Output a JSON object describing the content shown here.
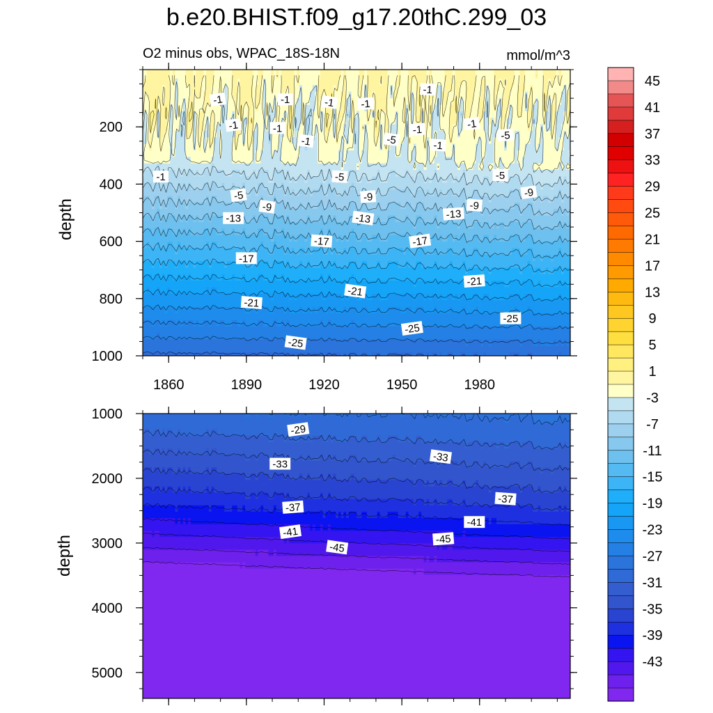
{
  "title": "b.e20.BHIST.f09_g17.20thC.299_03",
  "chart_data": {
    "type": "contour",
    "variable_label": "O2 minus obs, WPAC_18S-18N",
    "units": "mmol/m^3",
    "x_range": [
      1850,
      2015
    ],
    "x_ticks": [
      1860,
      1890,
      1920,
      1950,
      1980
    ],
    "x_tick_labels": [
      "1860",
      "1890",
      "1920",
      "1950",
      "1980"
    ],
    "panels": [
      {
        "name": "upper",
        "ylabel": "depth",
        "ylim": [
          0,
          1000
        ],
        "y_inverted": true,
        "y_ticks": [
          200,
          400,
          600,
          800,
          1000
        ],
        "y_tick_labels": [
          "200",
          "400",
          "600",
          "800",
          "1000"
        ],
        "contour_labels": [
          {
            "text": "-1",
            "x": 1879,
            "y": 105
          },
          {
            "text": "-1",
            "x": 1905,
            "y": 105
          },
          {
            "text": "-1",
            "x": 1922,
            "y": 115
          },
          {
            "text": "-1",
            "x": 1936,
            "y": 120
          },
          {
            "text": "-1",
            "x": 1960,
            "y": 70
          },
          {
            "text": "-1",
            "x": 1885,
            "y": 195
          },
          {
            "text": "-1",
            "x": 1902,
            "y": 205
          },
          {
            "text": "-1",
            "x": 1913,
            "y": 250
          },
          {
            "text": "-1",
            "x": 1956,
            "y": 210
          },
          {
            "text": "-1",
            "x": 1964,
            "y": 265
          },
          {
            "text": "-1",
            "x": 1977,
            "y": 190
          },
          {
            "text": "-1",
            "x": 1857,
            "y": 375
          },
          {
            "text": "-5",
            "x": 1946,
            "y": 245
          },
          {
            "text": "-5",
            "x": 1990,
            "y": 230
          },
          {
            "text": "-5",
            "x": 1926,
            "y": 375
          },
          {
            "text": "-5",
            "x": 1887,
            "y": 440
          },
          {
            "text": "-5",
            "x": 1988,
            "y": 370
          },
          {
            "text": "-9",
            "x": 1898,
            "y": 480
          },
          {
            "text": "-9",
            "x": 1937,
            "y": 445
          },
          {
            "text": "-9",
            "x": 1978,
            "y": 475
          },
          {
            "text": "-9",
            "x": 1999,
            "y": 430
          },
          {
            "text": "-13",
            "x": 1885,
            "y": 520
          },
          {
            "text": "-13",
            "x": 1935,
            "y": 520
          },
          {
            "text": "-13",
            "x": 1970,
            "y": 505
          },
          {
            "text": "-17",
            "x": 1919,
            "y": 600
          },
          {
            "text": "-17",
            "x": 1957,
            "y": 600
          },
          {
            "text": "-17",
            "x": 1890,
            "y": 660
          },
          {
            "text": "-21",
            "x": 1932,
            "y": 775
          },
          {
            "text": "-21",
            "x": 1978,
            "y": 740
          },
          {
            "text": "-21",
            "x": 1892,
            "y": 815
          },
          {
            "text": "-25",
            "x": 1954,
            "y": 905
          },
          {
            "text": "-25",
            "x": 1992,
            "y": 870
          },
          {
            "text": "-25",
            "x": 1909,
            "y": 955
          }
        ]
      },
      {
        "name": "lower",
        "ylabel": "depth",
        "ylim": [
          1000,
          5400
        ],
        "y_inverted": true,
        "y_ticks": [
          1000,
          2000,
          3000,
          4000,
          5000
        ],
        "y_tick_labels": [
          "1000",
          "2000",
          "3000",
          "4000",
          "5000"
        ],
        "contour_labels": [
          {
            "text": "-29",
            "x": 1910,
            "y": 1250
          },
          {
            "text": "-33",
            "x": 1903,
            "y": 1780
          },
          {
            "text": "-33",
            "x": 1965,
            "y": 1670
          },
          {
            "text": "-37",
            "x": 1908,
            "y": 2450
          },
          {
            "text": "-37",
            "x": 1990,
            "y": 2320
          },
          {
            "text": "-41",
            "x": 1907,
            "y": 2830
          },
          {
            "text": "-41",
            "x": 1978,
            "y": 2680
          },
          {
            "text": "-45",
            "x": 1925,
            "y": 3070
          },
          {
            "text": "-45",
            "x": 1966,
            "y": 2940
          }
        ]
      }
    ],
    "colorbar": {
      "levels": [
        47,
        45,
        43,
        41,
        39,
        37,
        35,
        33,
        31,
        29,
        27,
        25,
        23,
        21,
        19,
        17,
        15,
        13,
        11,
        9,
        7,
        5,
        3,
        1,
        -1,
        -3,
        -5,
        -7,
        -9,
        -11,
        -13,
        -15,
        -17,
        -19,
        -21,
        -23,
        -25,
        -27,
        -29,
        -31,
        -33,
        -35,
        -37,
        -39,
        -41,
        -43,
        -45
      ],
      "tick_labels": [
        "45",
        "41",
        "37",
        "33",
        "29",
        "25",
        "21",
        "17",
        "13",
        "9",
        "5",
        "1",
        "-3",
        "-7",
        "-11",
        "-15",
        "-19",
        "-23",
        "-27",
        "-31",
        "-35",
        "-39",
        "-43"
      ],
      "colors": [
        "#FFB3B3",
        "#F28A8A",
        "#E65555",
        "#E03A3A",
        "#D61F1F",
        "#D20000",
        "#E00000",
        "#EE1111",
        "#FF2222",
        "#FF3A1A",
        "#FF4A10",
        "#FF5A0A",
        "#FF6A00",
        "#FF7A00",
        "#FF8A00",
        "#FF9A00",
        "#FFAA00",
        "#FFBA10",
        "#FFC820",
        "#FFD430",
        "#FFDE40",
        "#FFE860",
        "#FFF080",
        "#FFF4A0",
        "#FFFFC8",
        "#C4E4F2",
        "#B0DAF0",
        "#9CD0EE",
        "#86C8EE",
        "#6EC0EE",
        "#55BAF2",
        "#3CB4F6",
        "#1EAEFA",
        "#14A4F8",
        "#1898F2",
        "#1E8CEC",
        "#2480E4",
        "#2A74DC",
        "#306AD6",
        "#345ED0",
        "#3254CC",
        "#2A44D2",
        "#1E30E0",
        "#0A14F0",
        "#3414F0",
        "#5018EC",
        "#6E20EC",
        "#8028F0"
      ]
    }
  }
}
